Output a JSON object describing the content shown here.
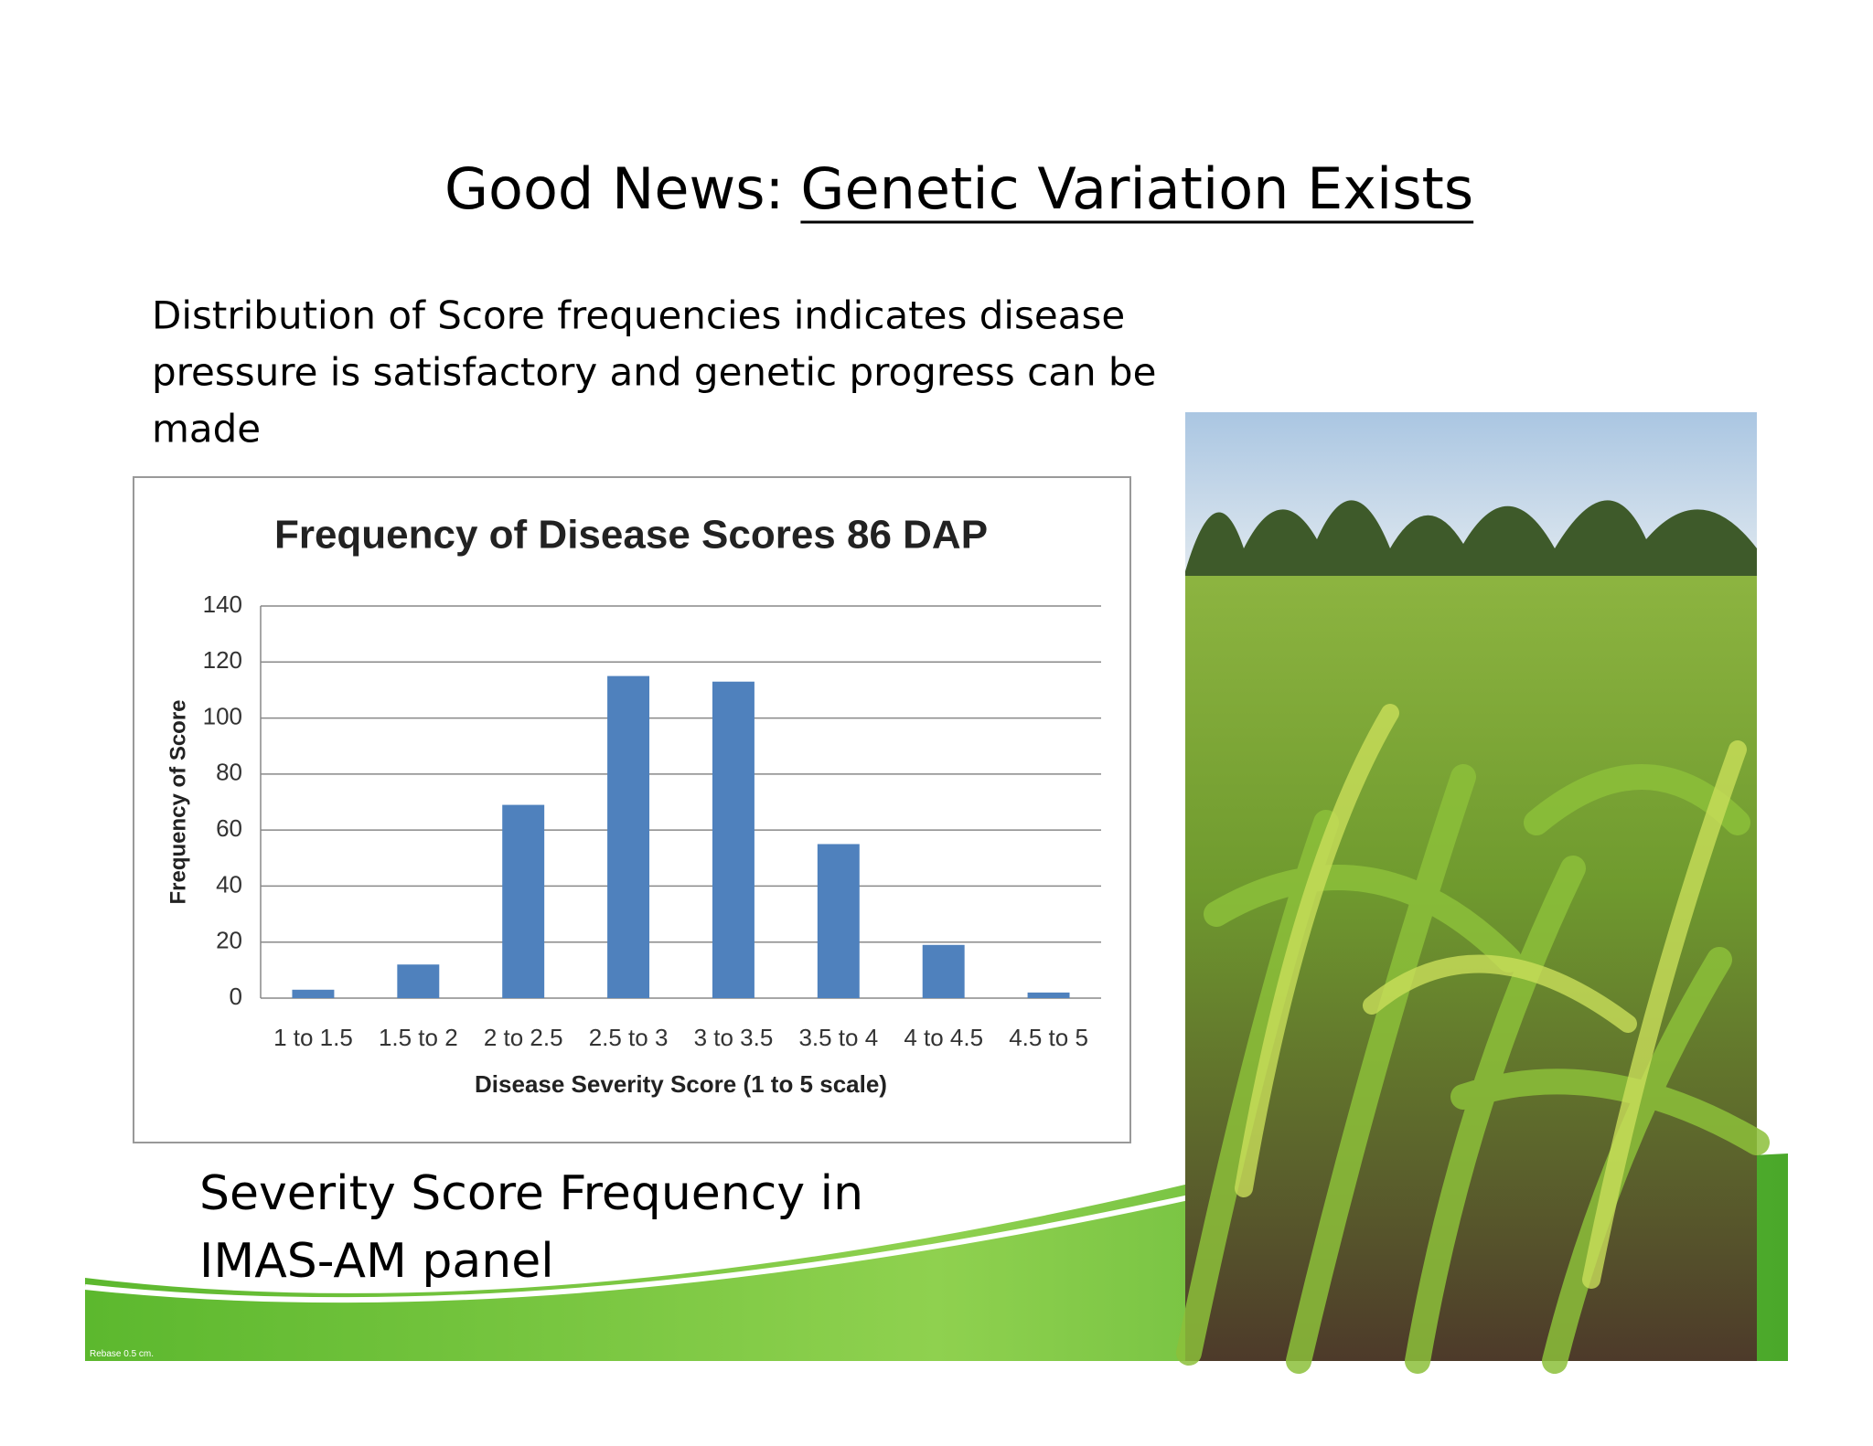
{
  "slide": {
    "title_lead": "Good News:",
    "title_link": "Genetic Variation Exists",
    "text_lines": [
      "Distribution of Score frequencies indicates disease",
      "pressure is satisfactory and genetic progress can be",
      "made"
    ],
    "caption_lines": [
      "Severity Score Frequency in",
      "IMAS-AM panel"
    ],
    "footnote": "Rebase 0.5 cm."
  },
  "chart_data": {
    "type": "bar",
    "title": "Frequency of Disease Scores 86 DAP",
    "x_label": "Disease Severity Score (1 to 5 scale)",
    "y_label": "Frequency of Score",
    "categories": [
      "1 to 1.5",
      "1.5 to 2",
      "2 to 2.5",
      "2.5 to 3",
      "3 to 3.5",
      "3.5 to 4",
      "4 to 4.5",
      "4.5 to 5"
    ],
    "values": [
      3,
      12,
      69,
      115,
      113,
      55,
      19,
      2
    ],
    "color": "#4f81bd",
    "ylim": [
      0,
      140
    ],
    "yticks": [
      0,
      20,
      40,
      60,
      80,
      100,
      120,
      140
    ],
    "grid": true
  }
}
